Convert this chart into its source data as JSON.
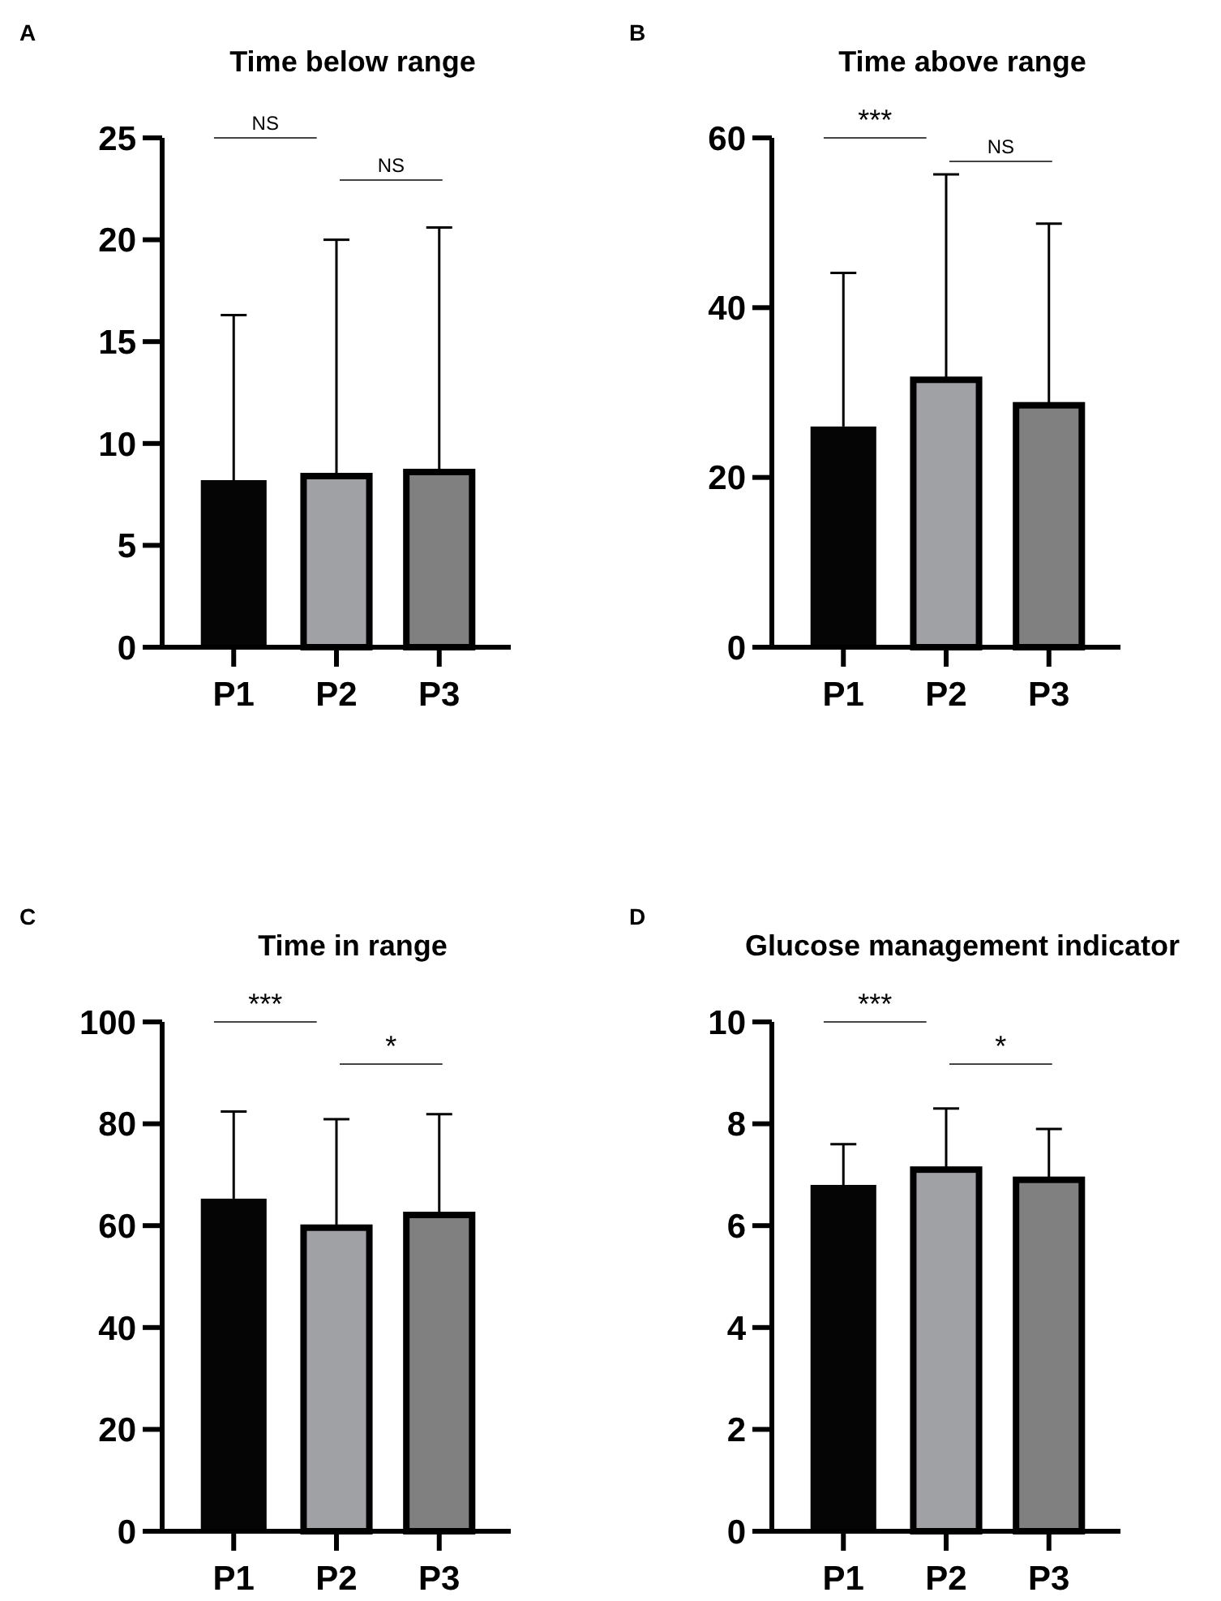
{
  "chart_data": [
    {
      "type": "bar",
      "title": "Time below range",
      "categories": [
        "P1",
        "P2",
        "P3"
      ],
      "values": [
        8.2,
        8.4,
        8.6
      ],
      "colors": [
        "#050505",
        "#a0a1a5",
        "#808080"
      ],
      "errors": [
        [
          8.2,
          16.3
        ],
        [
          8.4,
          20.0
        ],
        [
          8.6,
          20.6
        ]
      ],
      "ylim": [
        0,
        25
      ],
      "yticks": [
        0,
        5,
        10,
        15,
        20,
        25
      ],
      "grid": false,
      "annotations": [
        "A",
        "NS",
        "NS"
      ]
    },
    {
      "type": "bar",
      "title": "Time above range",
      "categories": [
        "P1",
        "P2",
        "P3"
      ],
      "values": [
        26,
        31.5,
        28.5
      ],
      "colors": [
        "#050505",
        "#a0a1a5",
        "#808080"
      ],
      "errors": [
        [
          26,
          44.1
        ],
        [
          31.5,
          55.7
        ],
        [
          28.5,
          49.9
        ]
      ],
      "ylim": [
        0,
        60
      ],
      "yticks": [
        0,
        20,
        40,
        60
      ],
      "grid": false,
      "annotations": [
        "B",
        "***",
        "NS"
      ]
    },
    {
      "type": "bar",
      "title": "Time in range",
      "categories": [
        "P1",
        "P2",
        "P3"
      ],
      "values": [
        65.3,
        59.6,
        62.1
      ],
      "colors": [
        "#050505",
        "#a0a1a5",
        "#808080"
      ],
      "errors": [
        [
          65.3,
          82.4
        ],
        [
          59.6,
          80.9
        ],
        [
          62.1,
          81.9
        ]
      ],
      "ylim": [
        0,
        100
      ],
      "yticks": [
        0,
        20,
        40,
        60,
        80,
        100
      ],
      "grid": false,
      "annotations": [
        "C",
        "***",
        "*"
      ]
    },
    {
      "type": "bar",
      "title": "Glucose management indicator",
      "categories": [
        "P1",
        "P2",
        "P3"
      ],
      "values": [
        6.8,
        7.1,
        6.9
      ],
      "colors": [
        "#050505",
        "#a0a1a5",
        "#808080"
      ],
      "errors": [
        [
          6.8,
          7.6
        ],
        [
          7.1,
          8.3
        ],
        [
          6.9,
          7.9
        ]
      ],
      "ylim": [
        0,
        10
      ],
      "yticks": [
        0,
        2,
        4,
        6,
        8,
        10
      ],
      "grid": false,
      "annotations": [
        "D",
        "***",
        "*"
      ]
    }
  ]
}
